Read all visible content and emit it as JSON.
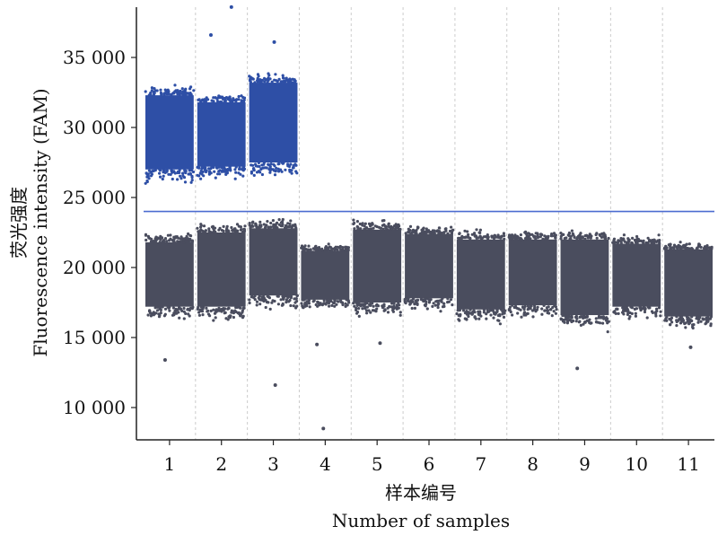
{
  "chart_data": {
    "type": "scatter",
    "xlabel_zh": "样本编号",
    "xlabel": "Number of samples",
    "ylabel_zh": "荧光强度",
    "ylabel": "Fluorescence intensity (FAM)",
    "ylim": [
      8000,
      38500
    ],
    "yticks": [
      10000,
      15000,
      20000,
      25000,
      30000,
      35000
    ],
    "ytick_labels": [
      "10 000",
      "15 000",
      "20 000",
      "25 000",
      "30 000",
      "35 000"
    ],
    "categories": [
      "1",
      "2",
      "3",
      "4",
      "5",
      "6",
      "7",
      "8",
      "9",
      "10",
      "11"
    ],
    "threshold": 24000,
    "colors": {
      "positive": "#2e4fa6",
      "negative": "#4a4d5e",
      "threshold": "#4c6bd0",
      "axis": "#222222",
      "separator": "#cccccc"
    },
    "samples": [
      {
        "sample": "1",
        "negative": {
          "low": 17200,
          "high": 21800
        },
        "positive": {
          "low": 27000,
          "high": 32300
        }
      },
      {
        "sample": "2",
        "negative": {
          "low": 17200,
          "high": 22500
        },
        "positive": {
          "low": 27200,
          "high": 31800
        }
      },
      {
        "sample": "3",
        "negative": {
          "low": 18000,
          "high": 22800
        },
        "positive": {
          "low": 27500,
          "high": 33200
        }
      },
      {
        "sample": "4",
        "negative": {
          "low": 17700,
          "high": 21200
        },
        "positive": null
      },
      {
        "sample": "5",
        "negative": {
          "low": 17500,
          "high": 22700
        },
        "positive": null
      },
      {
        "sample": "6",
        "negative": {
          "low": 17800,
          "high": 22400
        },
        "positive": null
      },
      {
        "sample": "7",
        "negative": {
          "low": 17000,
          "high": 22000
        },
        "positive": null
      },
      {
        "sample": "8",
        "negative": {
          "low": 17300,
          "high": 22000
        },
        "positive": null
      },
      {
        "sample": "9",
        "negative": {
          "low": 16600,
          "high": 22000
        },
        "positive": null
      },
      {
        "sample": "10",
        "negative": {
          "low": 17200,
          "high": 21700
        },
        "positive": null
      },
      {
        "sample": "11",
        "negative": {
          "low": 16500,
          "high": 21300
        },
        "positive": null
      }
    ],
    "outliers": [
      {
        "sample": "1",
        "y": 13400
      },
      {
        "sample": "2",
        "y": 38600
      },
      {
        "sample": "2",
        "y": 36600
      },
      {
        "sample": "3",
        "y": 11600
      },
      {
        "sample": "3",
        "y": 36100
      },
      {
        "sample": "4",
        "y": 8500
      },
      {
        "sample": "4",
        "y": 14500
      },
      {
        "sample": "5",
        "y": 14600
      },
      {
        "sample": "9",
        "y": 12800
      },
      {
        "sample": "11",
        "y": 14300
      }
    ]
  }
}
